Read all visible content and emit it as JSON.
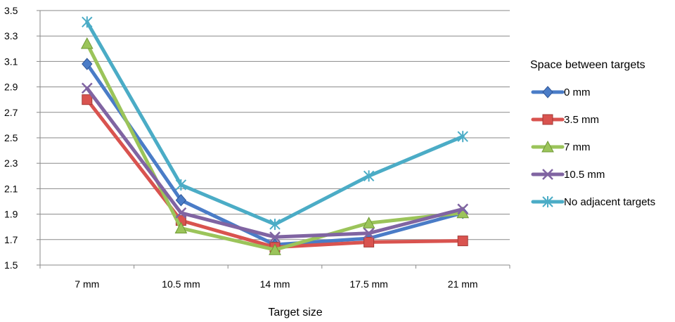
{
  "chart_data": {
    "type": "line",
    "categories": [
      "7 mm",
      "10.5 mm",
      "14 mm",
      "17.5 mm",
      "21 mm"
    ],
    "xlabel": "Target size",
    "ylabel": "",
    "title": "",
    "ylim": [
      1.5,
      3.5
    ],
    "yticks": [
      "1.5",
      "1.7",
      "1.9",
      "2.1",
      "2.3",
      "2.5",
      "2.7",
      "2.9",
      "3.1",
      "3.3",
      "3.5"
    ],
    "grid": true,
    "legend": {
      "title": "Space between targets",
      "position": "right"
    },
    "series": [
      {
        "name": "0 mm",
        "values": [
          3.08,
          2.01,
          1.66,
          1.71,
          1.91
        ],
        "color": "#4a7cc7",
        "marker": "diamond"
      },
      {
        "name": "3.5 mm",
        "values": [
          2.8,
          1.85,
          1.64,
          1.68,
          1.69
        ],
        "color": "#d9534f",
        "marker": "square"
      },
      {
        "name": "7 mm",
        "values": [
          3.24,
          1.79,
          1.62,
          1.83,
          1.91
        ],
        "color": "#9bc45a",
        "marker": "triangle"
      },
      {
        "name": "10.5 mm",
        "values": [
          2.89,
          1.91,
          1.72,
          1.75,
          1.94
        ],
        "color": "#8064a2",
        "marker": "x"
      },
      {
        "name": "No adjacent targets",
        "values": [
          3.41,
          2.13,
          1.82,
          2.2,
          2.51
        ],
        "color": "#4bacc6",
        "marker": "star"
      }
    ]
  }
}
